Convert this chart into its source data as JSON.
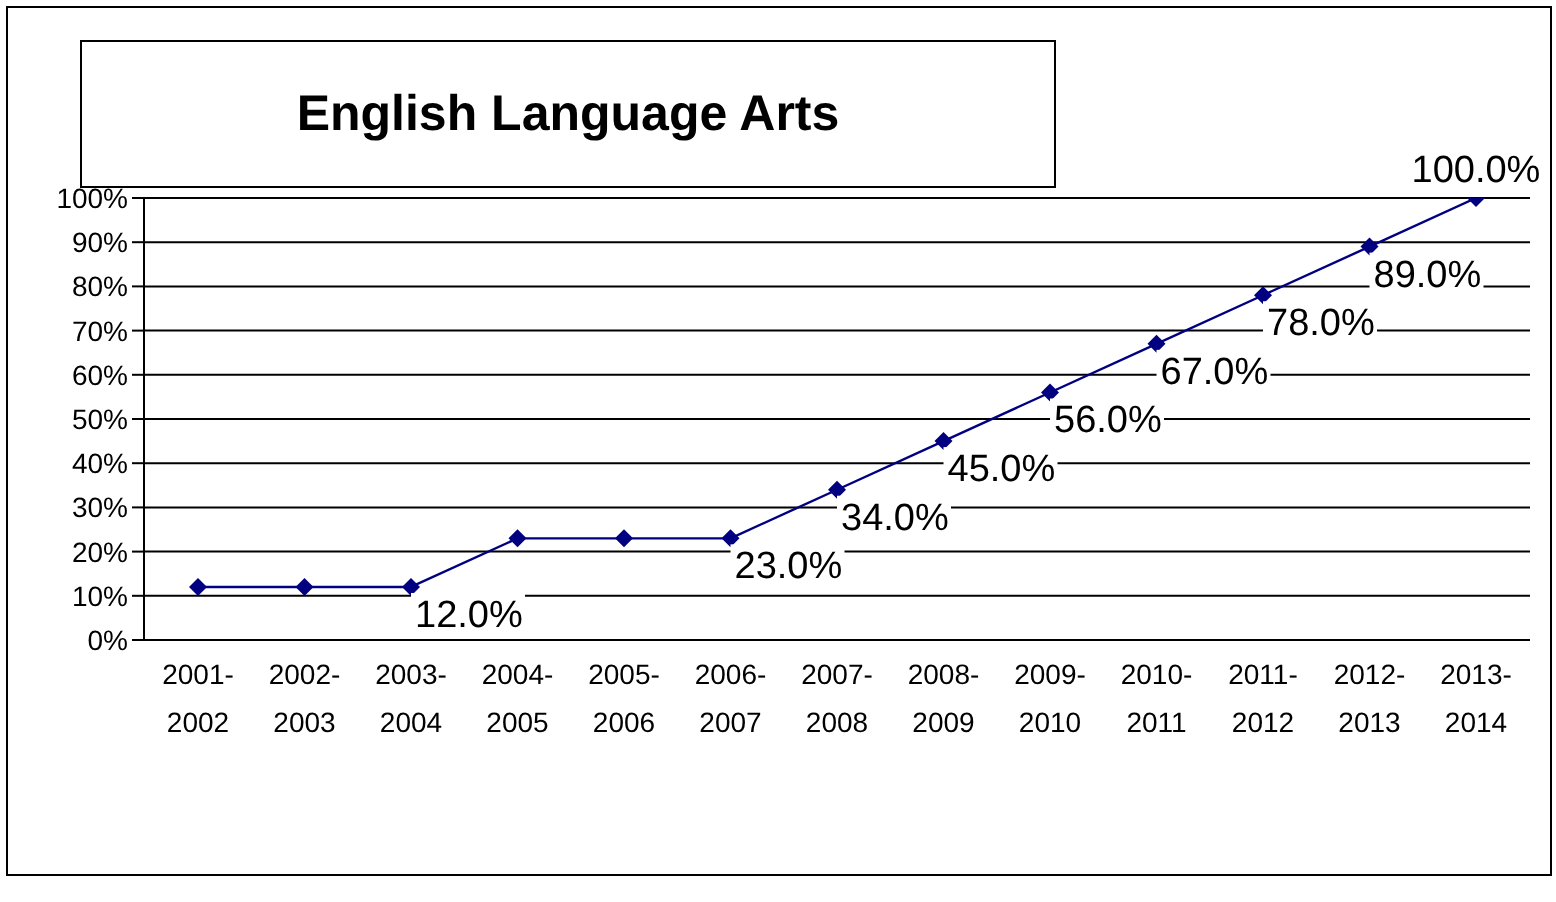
{
  "chart_data": {
    "type": "line",
    "title": "English Language Arts",
    "categories": [
      "2001-2002",
      "2002-2003",
      "2003-2004",
      "2004-2005",
      "2005-2006",
      "2006-2007",
      "2007-2008",
      "2008-2009",
      "2009-2010",
      "2010-2011",
      "2011-2012",
      "2012-2013",
      "2013-2014"
    ],
    "series": [
      {
        "color": "#000080",
        "values": [
          12,
          12,
          12,
          23,
          23,
          23,
          34,
          45,
          56,
          67,
          78,
          89,
          100
        ],
        "value_labels": [
          null,
          null,
          "12.0%",
          null,
          null,
          "23.0%",
          "34.0%",
          "45.0%",
          "56.0%",
          "67.0%",
          "78.0%",
          "89.0%",
          "100.0%"
        ]
      }
    ],
    "ylim": [
      0,
      100
    ],
    "yticks": [
      {
        "value": 0,
        "label": "0%"
      },
      {
        "value": 10,
        "label": "10%"
      },
      {
        "value": 20,
        "label": "20%"
      },
      {
        "value": 30,
        "label": "30%"
      },
      {
        "value": 40,
        "label": "40%"
      },
      {
        "value": 50,
        "label": "50%"
      },
      {
        "value": 60,
        "label": "60%"
      },
      {
        "value": 70,
        "label": "70%"
      },
      {
        "value": 80,
        "label": "80%"
      },
      {
        "value": 90,
        "label": "90%"
      },
      {
        "value": 100,
        "label": "100%"
      }
    ],
    "grid": "y",
    "legend": false,
    "marker": "diamond",
    "line_style": "solid"
  }
}
